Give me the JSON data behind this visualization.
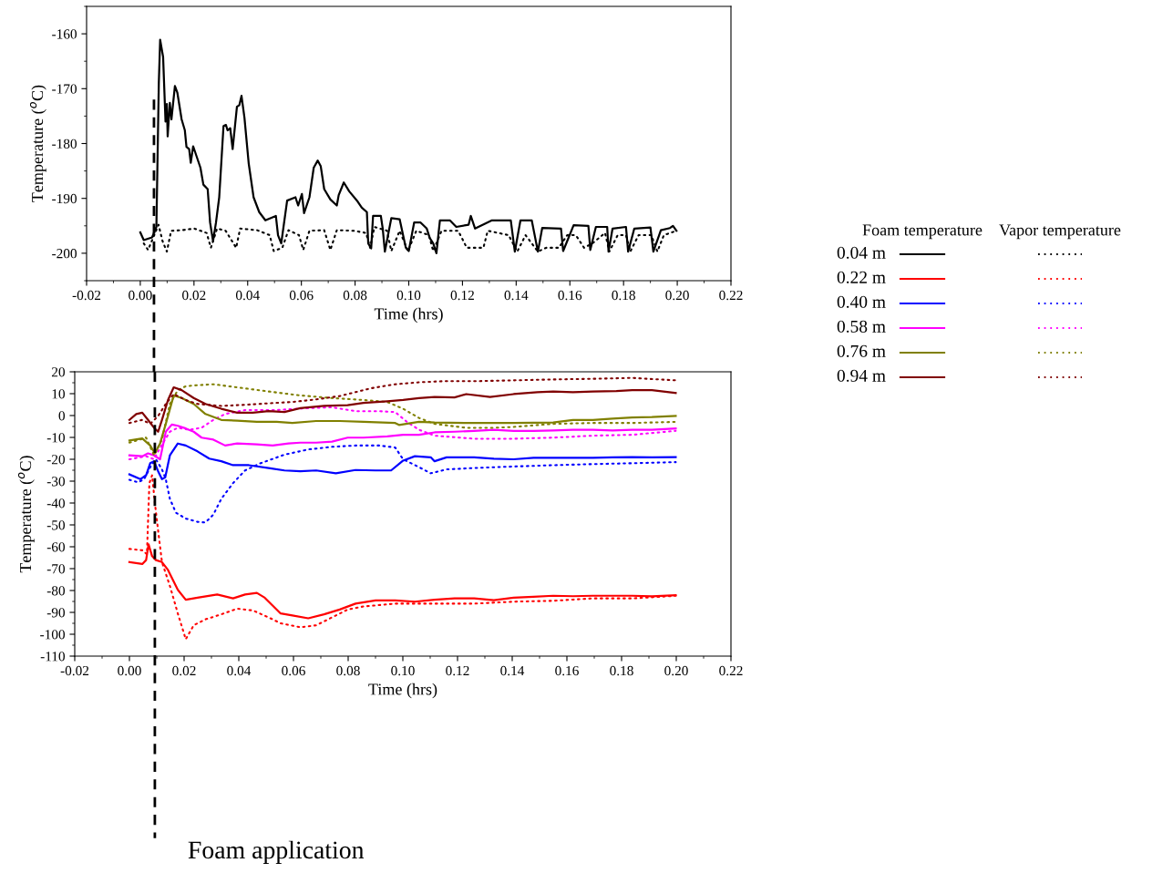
{
  "chart_data": [
    {
      "type": "line",
      "ylabel": "Temperature ($^{o}$C)",
      "xlabel": "Time (hrs)",
      "xlim": [
        -0.02,
        0.22
      ],
      "xticks": [
        {
          "value": -0.02,
          "label": "-0.02"
        },
        {
          "value": 0,
          "label": "0.00"
        },
        {
          "value": 0.02,
          "label": "0.02"
        },
        {
          "value": 0.04,
          "label": "0.04"
        },
        {
          "value": 0.06,
          "label": "0.06"
        },
        {
          "value": 0.08,
          "label": "0.08"
        },
        {
          "value": 0.1,
          "label": "0.10"
        },
        {
          "value": 0.12,
          "label": "0.12"
        },
        {
          "value": 0.14,
          "label": "0.14"
        },
        {
          "value": 0.16,
          "label": "0.16"
        },
        {
          "value": 0.18,
          "label": "0.18"
        },
        {
          "value": 0.2,
          "label": "0.20"
        },
        {
          "value": 0.22,
          "label": "0.22"
        }
      ],
      "ylim": [
        -205,
        -155
      ],
      "yticks": [
        {
          "value": -200,
          "label": "-200"
        },
        {
          "value": -190,
          "label": "-190"
        },
        {
          "value": -180,
          "label": "-180"
        },
        {
          "value": -170,
          "label": "-170"
        },
        {
          "value": -160,
          "label": "-160"
        }
      ],
      "grid": false,
      "legend": "right",
      "ref_lines": [
        {
          "axis": "x",
          "value": 0.0051,
          "line_style": "dashed",
          "color": "#000000"
        }
      ],
      "series": [
        {
          "name": "0.04 m",
          "color": "#000000",
          "line_style": "solid",
          "x": [
            0.0,
            0.0013,
            0.0044,
            0.006,
            0.0069,
            0.0074,
            0.0085,
            0.0094,
            0.0099,
            0.0102,
            0.011,
            0.0116,
            0.0129,
            0.0138,
            0.0154,
            0.0166,
            0.0172,
            0.0182,
            0.0188,
            0.0197,
            0.0224,
            0.0235,
            0.0251,
            0.026,
            0.0271,
            0.0282,
            0.0294,
            0.031,
            0.0319,
            0.0325,
            0.0335,
            0.0344,
            0.036,
            0.0369,
            0.0377,
            0.0388,
            0.0404,
            0.0422,
            0.0443,
            0.0466,
            0.0505,
            0.0513,
            0.0525,
            0.0547,
            0.0578,
            0.0588,
            0.0602,
            0.061,
            0.063,
            0.0646,
            0.0661,
            0.0672,
            0.0685,
            0.0708,
            0.0732,
            0.0739,
            0.0758,
            0.0778,
            0.081,
            0.0825,
            0.0844,
            0.0849,
            0.086,
            0.0867,
            0.0896,
            0.0903,
            0.0911,
            0.0935,
            0.0966,
            0.0989,
            0.1,
            0.102,
            0.1044,
            0.1067,
            0.1078,
            0.1091,
            0.1103,
            0.1116,
            0.1153,
            0.1177,
            0.1223,
            0.1231,
            0.1247,
            0.131,
            0.138,
            0.1395,
            0.1416,
            0.1458,
            0.1481,
            0.1497,
            0.1567,
            0.1575,
            0.1614,
            0.1669,
            0.1676,
            0.1697,
            0.1739,
            0.1744,
            0.1759,
            0.1809,
            0.1817,
            0.184,
            0.19,
            0.1911,
            0.1939,
            0.1973,
            0.1984,
            0.1997
          ],
          "values": [
            -196.2,
            -197.6,
            -197.1,
            -195.2,
            -169.1,
            -161.1,
            -164.2,
            -176.0,
            -172.8,
            -178.7,
            -172.6,
            -175.6,
            -169.5,
            -170.7,
            -175.6,
            -177.6,
            -180.6,
            -181.0,
            -183.5,
            -180.5,
            -184.4,
            -187.5,
            -188.3,
            -194.4,
            -197.8,
            -194.4,
            -189.8,
            -176.8,
            -176.6,
            -177.6,
            -177.2,
            -181.0,
            -173.3,
            -173.0,
            -171.3,
            -175.3,
            -183.7,
            -189.8,
            -192.5,
            -194.0,
            -193.2,
            -196.7,
            -198.2,
            -190.4,
            -189.8,
            -191.3,
            -189.2,
            -192.7,
            -189.8,
            -184.4,
            -183.1,
            -184.1,
            -188.3,
            -190.2,
            -191.3,
            -189.4,
            -187.1,
            -188.7,
            -190.6,
            -191.7,
            -192.5,
            -198.2,
            -199.1,
            -193.2,
            -193.2,
            -195.5,
            -199.7,
            -193.6,
            -193.8,
            -199.0,
            -199.6,
            -194.4,
            -194.4,
            -195.5,
            -197.2,
            -198.2,
            -200.0,
            -194.0,
            -194.0,
            -195.2,
            -194.8,
            -193.2,
            -195.5,
            -194.0,
            -194.0,
            -199.7,
            -194.0,
            -194.0,
            -199.7,
            -195.4,
            -195.5,
            -199.6,
            -194.9,
            -195.0,
            -199.4,
            -195.2,
            -195.2,
            -199.7,
            -195.5,
            -195.2,
            -199.7,
            -195.5,
            -195.3,
            -199.7,
            -195.8,
            -195.4,
            -195.0,
            -195.9
          ]
        },
        {
          "color": "#000000",
          "line_style": "dotted",
          "x": [
            0.0013,
            0.0029,
            0.0052,
            0.0068,
            0.0083,
            0.0099,
            0.0115,
            0.0154,
            0.0201,
            0.0247,
            0.0263,
            0.0286,
            0.0318,
            0.0357,
            0.0372,
            0.0435,
            0.0482,
            0.0497,
            0.0529,
            0.0552,
            0.0591,
            0.0607,
            0.063,
            0.0685,
            0.0708,
            0.0732,
            0.0794,
            0.0841,
            0.0856,
            0.0872,
            0.0919,
            0.0935,
            0.0966,
            0.0997,
            0.1028,
            0.1075,
            0.1091,
            0.1122,
            0.1184,
            0.1216,
            0.1278,
            0.1294,
            0.1372,
            0.1404,
            0.1435,
            0.1481,
            0.1512,
            0.1559,
            0.159,
            0.1622,
            0.1653,
            0.1684,
            0.1731,
            0.1747,
            0.1778,
            0.1809,
            0.1825,
            0.1856,
            0.1903,
            0.1926,
            0.195,
            0.1997
          ],
          "values": [
            -198.2,
            -199.4,
            -196.7,
            -194.8,
            -197.8,
            -199.7,
            -195.9,
            -195.8,
            -195.5,
            -196.3,
            -199.0,
            -195.5,
            -195.9,
            -199.0,
            -195.5,
            -195.8,
            -196.7,
            -199.6,
            -199.0,
            -195.8,
            -196.7,
            -199.4,
            -195.9,
            -195.8,
            -199.4,
            -195.8,
            -195.9,
            -196.3,
            -199.0,
            -195.2,
            -195.9,
            -199.6,
            -195.9,
            -199.6,
            -195.9,
            -196.7,
            -199.6,
            -195.9,
            -195.9,
            -199.0,
            -199.0,
            -195.9,
            -196.7,
            -199.7,
            -196.7,
            -199.7,
            -199.0,
            -199.0,
            -196.7,
            -196.7,
            -199.0,
            -198.2,
            -196.3,
            -199.7,
            -196.7,
            -196.7,
            -199.7,
            -196.7,
            -196.7,
            -199.7,
            -196.7,
            -195.9
          ]
        }
      ]
    },
    {
      "type": "line",
      "ylabel": "Temperature ($^{o}$C)",
      "xlabel": "Time (hrs)",
      "xlim": [
        -0.02,
        0.22
      ],
      "xticks": [
        {
          "value": -0.02,
          "label": "-0.02"
        },
        {
          "value": 0,
          "label": "0.00"
        },
        {
          "value": 0.02,
          "label": "0.02"
        },
        {
          "value": 0.04,
          "label": "0.04"
        },
        {
          "value": 0.06,
          "label": "0.06"
        },
        {
          "value": 0.08,
          "label": "0.08"
        },
        {
          "value": 0.1,
          "label": "0.10"
        },
        {
          "value": 0.12,
          "label": "0.12"
        },
        {
          "value": 0.14,
          "label": "0.14"
        },
        {
          "value": 0.16,
          "label": "0.16"
        },
        {
          "value": 0.18,
          "label": "0.18"
        },
        {
          "value": 0.2,
          "label": "0.20"
        },
        {
          "value": 0.22,
          "label": "0.22"
        }
      ],
      "ylim": [
        -110,
        20
      ],
      "yticks": [
        -110,
        -100,
        -90,
        -80,
        -70,
        -60,
        -50,
        -40,
        -30,
        -20,
        -10,
        0,
        10,
        20
      ],
      "grid": false,
      "legend": "right",
      "annotations": [
        "Foam temperature",
        "Vapor temperature"
      ],
      "ref_lines": [
        {
          "axis": "x",
          "value": 0.0093,
          "label": "Foam application",
          "line_style": "dashed",
          "color": "#000000"
        }
      ],
      "series": [
        {
          "name": "0.22 m",
          "color": "#ff0000",
          "line_style": "solid",
          "x": [
            0.0,
            0.0047,
            0.0061,
            0.007,
            0.0083,
            0.0097,
            0.0119,
            0.0141,
            0.0177,
            0.0206,
            0.0249,
            0.0321,
            0.0379,
            0.0423,
            0.0466,
            0.0495,
            0.0553,
            0.0596,
            0.0654,
            0.0712,
            0.0769,
            0.0827,
            0.09,
            0.0972,
            0.1044,
            0.1116,
            0.1189,
            0.1261,
            0.1333,
            0.1405,
            0.1478,
            0.155,
            0.1622,
            0.1695,
            0.1767,
            0.1839,
            0.1911,
            0.1998
          ],
          "values": [
            -67.0,
            -67.9,
            -66.1,
            -58.9,
            -64.3,
            -66.1,
            -67.0,
            -70.6,
            -79.7,
            -84.2,
            -83.3,
            -81.8,
            -83.6,
            -81.8,
            -81.1,
            -83.3,
            -90.5,
            -91.4,
            -92.7,
            -90.9,
            -88.7,
            -86.0,
            -84.5,
            -84.5,
            -85.1,
            -84.2,
            -83.6,
            -83.6,
            -84.4,
            -83.3,
            -82.9,
            -82.4,
            -82.6,
            -82.4,
            -82.4,
            -82.4,
            -82.7,
            -82.2
          ]
        },
        {
          "color": "#ff0000",
          "line_style": "dotted",
          "x": [
            0.0,
            0.0047,
            0.0064,
            0.0073,
            0.0083,
            0.0093,
            0.0105,
            0.0119,
            0.0148,
            0.0177,
            0.0206,
            0.0235,
            0.0278,
            0.0336,
            0.0394,
            0.0451,
            0.0509,
            0.0553,
            0.0625,
            0.0683,
            0.0741,
            0.0798,
            0.0856,
            0.0972,
            0.1116,
            0.1261,
            0.1405,
            0.155,
            0.1695,
            0.1839,
            0.1998
          ],
          "values": [
            -61.0,
            -61.6,
            -63.4,
            -30.9,
            -27.3,
            -39.9,
            -52.6,
            -67.0,
            -77.9,
            -90.5,
            -102.3,
            -95.9,
            -93.2,
            -90.9,
            -88.3,
            -89.1,
            -92.3,
            -95.0,
            -96.8,
            -95.9,
            -92.3,
            -88.7,
            -87.3,
            -86.0,
            -86.0,
            -86.0,
            -85.1,
            -84.7,
            -83.6,
            -83.6,
            -82.4
          ]
        },
        {
          "name": "0.40 m",
          "color": "#0000ff",
          "line_style": "solid",
          "x": [
            0.0,
            0.004,
            0.0061,
            0.0076,
            0.009,
            0.0105,
            0.0119,
            0.0131,
            0.0148,
            0.0177,
            0.0206,
            0.0249,
            0.0292,
            0.0336,
            0.0379,
            0.0437,
            0.0509,
            0.0567,
            0.0625,
            0.0683,
            0.0755,
            0.0827,
            0.09,
            0.0957,
            0.1001,
            0.1044,
            0.1102,
            0.1116,
            0.116,
            0.1261,
            0.1333,
            0.1405,
            0.1478,
            0.155,
            0.1622,
            0.1695,
            0.1767,
            0.1839,
            0.1911,
            0.1998
          ],
          "values": [
            -26.9,
            -29.1,
            -27.3,
            -21.8,
            -20.9,
            -25.5,
            -29.1,
            -28.2,
            -18.2,
            -12.8,
            -13.7,
            -16.4,
            -19.7,
            -20.9,
            -22.7,
            -22.7,
            -24.0,
            -25.1,
            -25.5,
            -25.1,
            -26.4,
            -24.9,
            -25.1,
            -25.1,
            -20.6,
            -18.6,
            -19.1,
            -20.9,
            -19.1,
            -19.1,
            -19.7,
            -20.0,
            -19.3,
            -19.3,
            -19.3,
            -19.3,
            -19.1,
            -19.0,
            -19.1,
            -19.0
          ]
        },
        {
          "color": "#0000ff",
          "line_style": "dotted",
          "x": [
            0.0,
            0.0032,
            0.0054,
            0.0076,
            0.0097,
            0.0119,
            0.0133,
            0.0148,
            0.017,
            0.0206,
            0.0249,
            0.0278,
            0.0307,
            0.0336,
            0.0379,
            0.0423,
            0.048,
            0.0567,
            0.0654,
            0.0741,
            0.0827,
            0.0914,
            0.0972,
            0.1001,
            0.1059,
            0.1102,
            0.116,
            0.1261,
            0.1405,
            0.155,
            0.1695,
            0.1839,
            0.1998
          ],
          "values": [
            -29.4,
            -30.5,
            -29.1,
            -23.6,
            -20.0,
            -24.6,
            -29.1,
            -38.1,
            -44.4,
            -47.1,
            -48.6,
            -48.9,
            -45.3,
            -38.1,
            -30.9,
            -25.1,
            -21.8,
            -17.9,
            -15.5,
            -14.3,
            -13.7,
            -13.7,
            -14.6,
            -20.0,
            -23.6,
            -26.4,
            -24.6,
            -24.0,
            -23.3,
            -22.7,
            -22.2,
            -21.8,
            -21.3
          ]
        },
        {
          "name": "0.58 m",
          "color": "#ff00ff",
          "line_style": "solid",
          "x": [
            0.0,
            0.0047,
            0.0068,
            0.009,
            0.0112,
            0.0133,
            0.0155,
            0.0177,
            0.0206,
            0.0235,
            0.0264,
            0.0307,
            0.035,
            0.0394,
            0.0466,
            0.0524,
            0.0582,
            0.0625,
            0.0683,
            0.0741,
            0.0798,
            0.0856,
            0.0943,
            0.1001,
            0.1059,
            0.1116,
            0.1189,
            0.1261,
            0.1333,
            0.1405,
            0.1478,
            0.155,
            0.1622,
            0.1695,
            0.1767,
            0.1839,
            0.1911,
            0.1998
          ],
          "values": [
            -18.2,
            -18.6,
            -17.3,
            -18.2,
            -20.0,
            -7.4,
            -4.1,
            -4.7,
            -5.9,
            -7.4,
            -10.1,
            -11.0,
            -13.7,
            -12.8,
            -13.2,
            -13.7,
            -12.8,
            -12.4,
            -12.4,
            -11.9,
            -10.1,
            -10.1,
            -9.5,
            -8.8,
            -8.8,
            -7.7,
            -7.4,
            -7.0,
            -6.5,
            -7.0,
            -7.0,
            -6.8,
            -6.5,
            -6.5,
            -6.8,
            -6.5,
            -6.5,
            -5.9
          ]
        },
        {
          "color": "#ff00ff",
          "line_style": "dotted",
          "x": [
            0.0,
            0.0061,
            0.009,
            0.0105,
            0.0126,
            0.0148,
            0.0177,
            0.022,
            0.0264,
            0.0307,
            0.035,
            0.0423,
            0.0538,
            0.0654,
            0.0741,
            0.0827,
            0.0914,
            0.0972,
            0.1015,
            0.1059,
            0.1116,
            0.1261,
            0.1405,
            0.155,
            0.1695,
            0.1839,
            0.1998
          ],
          "values": [
            -20.0,
            -18.6,
            -20.0,
            -16.4,
            -11.9,
            -7.4,
            -5.6,
            -6.5,
            -5.6,
            -2.0,
            0.7,
            2.5,
            2.5,
            3.4,
            3.8,
            2.0,
            2.0,
            1.6,
            -2.9,
            -6.5,
            -9.2,
            -10.6,
            -10.6,
            -10.1,
            -9.2,
            -8.8,
            -7.0
          ]
        },
        {
          "name": "0.76 m",
          "color": "#808000",
          "line_style": "solid",
          "x": [
            0.0,
            0.0047,
            0.0076,
            0.0093,
            0.0112,
            0.0133,
            0.0162,
            0.0191,
            0.0235,
            0.0278,
            0.0336,
            0.0394,
            0.0466,
            0.0538,
            0.0596,
            0.0683,
            0.0769,
            0.0856,
            0.0972,
            0.0986,
            0.1059,
            0.1116,
            0.1261,
            0.1405,
            0.155,
            0.1622,
            0.1695,
            0.1767,
            0.1839,
            0.1911,
            0.1998
          ],
          "values": [
            -11.4,
            -10.5,
            -13.7,
            -17.3,
            -12.8,
            -3.8,
            9.2,
            8.0,
            5.3,
            0.7,
            -2.0,
            -2.3,
            -2.9,
            -2.9,
            -3.4,
            -2.5,
            -2.5,
            -2.9,
            -3.4,
            -4.3,
            -2.9,
            -3.2,
            -3.4,
            -3.4,
            -3.2,
            -2.0,
            -2.0,
            -1.4,
            -0.9,
            -0.7,
            -0.2
          ]
        },
        {
          "color": "#808000",
          "line_style": "dotted",
          "x": [
            0.0,
            0.0061,
            0.009,
            0.0119,
            0.0148,
            0.0177,
            0.0206,
            0.0249,
            0.0307,
            0.0394,
            0.0509,
            0.0625,
            0.0741,
            0.0856,
            0.0943,
            0.1001,
            0.1059,
            0.1116,
            0.1232,
            0.1333,
            0.1405,
            0.155,
            0.1695,
            0.1839,
            0.1998
          ],
          "values": [
            -12.4,
            -10.1,
            -18.2,
            -11.0,
            5.3,
            11.6,
            13.4,
            13.9,
            14.3,
            12.9,
            11.0,
            9.2,
            8.0,
            7.1,
            6.2,
            3.1,
            -1.1,
            -3.8,
            -5.6,
            -5.6,
            -5.2,
            -3.8,
            -3.4,
            -3.4,
            -2.9
          ]
        },
        {
          "name": "0.94 m",
          "color": "#800000",
          "line_style": "solid",
          "x": [
            0.0,
            0.0025,
            0.0047,
            0.0068,
            0.009,
            0.0105,
            0.0119,
            0.0141,
            0.0162,
            0.0191,
            0.0235,
            0.0278,
            0.0336,
            0.0394,
            0.0451,
            0.0509,
            0.0567,
            0.0625,
            0.0712,
            0.0798,
            0.0856,
            0.0943,
            0.1001,
            0.1059,
            0.1116,
            0.1189,
            0.1232,
            0.1319,
            0.1405,
            0.1492,
            0.155,
            0.1622,
            0.1695,
            0.1781,
            0.1839,
            0.1911,
            0.1998
          ],
          "values": [
            -2.0,
            0.7,
            1.3,
            -2.0,
            -5.6,
            -7.4,
            -2.0,
            7.1,
            12.9,
            11.6,
            8.0,
            5.3,
            3.1,
            1.3,
            1.3,
            2.0,
            1.6,
            3.4,
            4.4,
            4.7,
            5.8,
            6.5,
            7.1,
            8.0,
            8.5,
            8.3,
            9.8,
            8.5,
            9.8,
            10.7,
            11.0,
            10.7,
            11.0,
            11.2,
            11.6,
            11.6,
            10.3
          ]
        },
        {
          "color": "#800000",
          "line_style": "dotted",
          "x": [
            0.0,
            0.0047,
            0.0076,
            0.0105,
            0.0133,
            0.0162,
            0.0206,
            0.0249,
            0.0336,
            0.0423,
            0.0509,
            0.0596,
            0.0683,
            0.0769,
            0.0827,
            0.0885,
            0.0972,
            0.1059,
            0.1145,
            0.1261,
            0.1405,
            0.155,
            0.1695,
            0.1839,
            0.1998
          ],
          "values": [
            -3.4,
            -2.0,
            -3.8,
            -0.2,
            5.3,
            9.8,
            7.1,
            5.3,
            4.4,
            4.9,
            5.6,
            6.2,
            7.4,
            8.9,
            10.7,
            12.5,
            14.3,
            15.2,
            15.7,
            15.7,
            16.1,
            16.5,
            16.8,
            17.2,
            16.1
          ]
        }
      ]
    }
  ]
}
